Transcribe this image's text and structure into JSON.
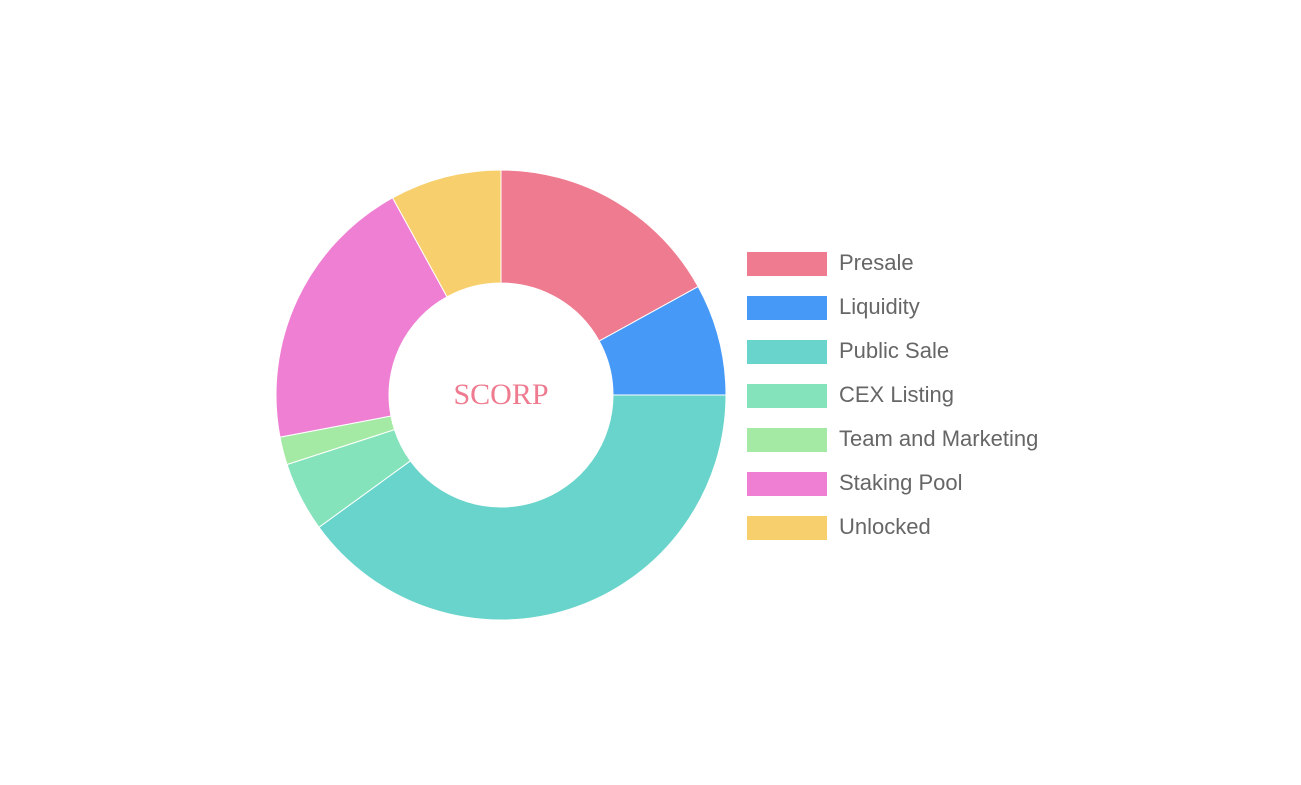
{
  "chart_data": {
    "type": "doughnut",
    "center_text": "SCORP",
    "categories": [
      "Presale",
      "Liquidity",
      "Public Sale",
      "CEX Listing",
      "Team and Marketing",
      "Staking Pool",
      "Unlocked"
    ],
    "values": [
      17,
      8,
      40,
      5,
      2,
      20,
      8
    ],
    "colors": [
      "#ee7b8f",
      "#4699f6",
      "#69d4cb",
      "#84e3bb",
      "#a5eaa4",
      "#ee7fd3",
      "#f7cf6d"
    ],
    "legend": "right"
  }
}
